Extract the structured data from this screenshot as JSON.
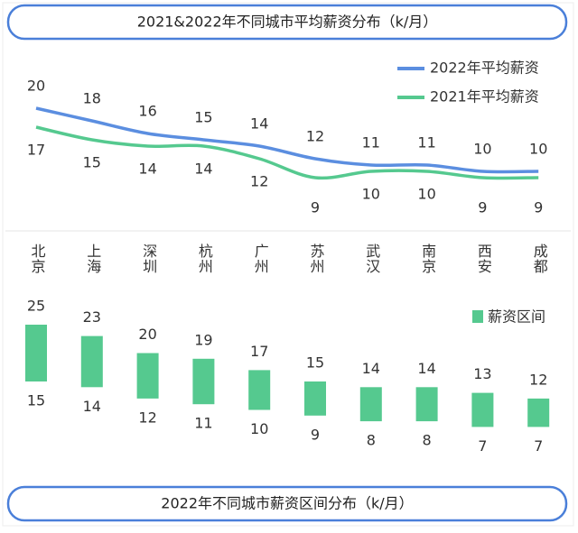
{
  "chart_data": [
    {
      "type": "line",
      "title": "2021&2022年不同城市平均薪资分布（k/月）",
      "categories": [
        "北京",
        "上海",
        "深圳",
        "杭州",
        "广州",
        "苏州",
        "武汉",
        "南京",
        "西安",
        "成都"
      ],
      "series": [
        {
          "name": "2022年平均薪资",
          "color": "#5b8ee0",
          "values": [
            20,
            18,
            16,
            15,
            14,
            12,
            11,
            11,
            10,
            10
          ]
        },
        {
          "name": "2021年平均薪资",
          "color": "#55c98f",
          "values": [
            17,
            15,
            14,
            14,
            12,
            9,
            10,
            10,
            9,
            9
          ]
        }
      ]
    },
    {
      "type": "range-bar",
      "title": "2022年不同城市薪资区间分布（k/月）",
      "series": [
        {
          "name": "薪资区间",
          "color": "#55c98f",
          "high": [
            25,
            23,
            20,
            19,
            17,
            15,
            14,
            14,
            13,
            12
          ],
          "low": [
            15,
            14,
            12,
            11,
            10,
            9,
            8,
            8,
            7,
            7
          ]
        }
      ]
    }
  ]
}
